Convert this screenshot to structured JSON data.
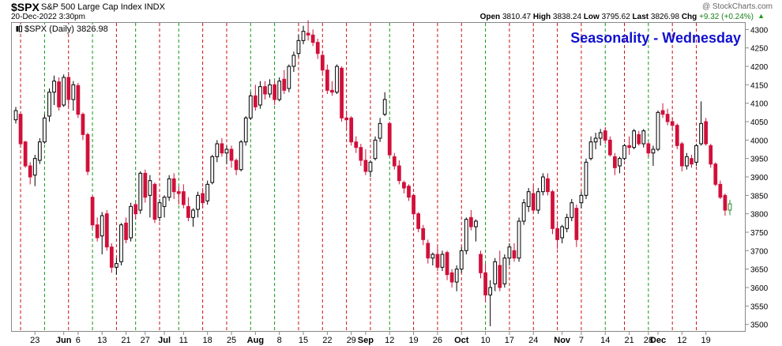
{
  "header": {
    "symbol": "$SPX",
    "name": "S&P 500 Large Cap Index INDX",
    "date": "20-Dec-2022 3:30pm",
    "credit": "@ StockCharts.com",
    "open_label": "Open",
    "open": "3810.47",
    "high_label": "High",
    "high": "3838.24",
    "low_label": "Low",
    "low": "3795.62",
    "last_label": "Last",
    "last": "3826.98",
    "chg_label": "Chg",
    "chg": "+9.32 (+0.24%)",
    "chg_icon": "up-triangle-icon"
  },
  "legend": {
    "label": "$SPX (Daily) 3826.98"
  },
  "annotation": {
    "title": "Seasonality - Wednesday",
    "color": "#1010d0"
  },
  "colors": {
    "up": "#ffffff",
    "down": "#d0103a",
    "wick": "#000000",
    "grid_red": "#cc1111",
    "grid_green": "#119911"
  },
  "chart_data": {
    "type": "candlestick",
    "ylim": [
      3480,
      4320
    ],
    "yticks": [
      3500,
      3550,
      3600,
      3650,
      3700,
      3750,
      3800,
      3850,
      3900,
      3950,
      4000,
      4050,
      4100,
      4150,
      4200,
      4250,
      4300
    ],
    "xtick_labels": [
      {
        "i": 4,
        "text": "23"
      },
      {
        "i": 10,
        "text": "Jun",
        "bold": true
      },
      {
        "i": 13,
        "text": "6"
      },
      {
        "i": 18,
        "text": "13"
      },
      {
        "i": 23,
        "text": "21"
      },
      {
        "i": 27,
        "text": "27"
      },
      {
        "i": 31,
        "text": "Jul",
        "bold": true
      },
      {
        "i": 35,
        "text": "11"
      },
      {
        "i": 40,
        "text": "18"
      },
      {
        "i": 45,
        "text": "25"
      },
      {
        "i": 50,
        "text": "Aug",
        "bold": true
      },
      {
        "i": 55,
        "text": "8"
      },
      {
        "i": 60,
        "text": "15"
      },
      {
        "i": 65,
        "text": "22"
      },
      {
        "i": 70,
        "text": "29"
      },
      {
        "i": 73,
        "text": "Sep",
        "bold": true
      },
      {
        "i": 78,
        "text": "12"
      },
      {
        "i": 83,
        "text": "19"
      },
      {
        "i": 88,
        "text": "26"
      },
      {
        "i": 93,
        "text": "Oct",
        "bold": true
      },
      {
        "i": 98,
        "text": "10"
      },
      {
        "i": 103,
        "text": "17"
      },
      {
        "i": 108,
        "text": "24"
      },
      {
        "i": 114,
        "text": "Nov",
        "bold": true
      },
      {
        "i": 118,
        "text": "7"
      },
      {
        "i": 123,
        "text": "14"
      },
      {
        "i": 128,
        "text": "21"
      },
      {
        "i": 132,
        "text": "28"
      },
      {
        "i": 134,
        "text": "Dec",
        "bold": true
      },
      {
        "i": 139,
        "text": "12"
      },
      {
        "i": 144,
        "text": "19"
      }
    ],
    "wednesday_markers": [
      {
        "i": 1,
        "c": "red"
      },
      {
        "i": 6,
        "c": "green"
      },
      {
        "i": 11,
        "c": "red"
      },
      {
        "i": 16,
        "c": "green"
      },
      {
        "i": 21,
        "c": "red"
      },
      {
        "i": 25,
        "c": "green"
      },
      {
        "i": 30,
        "c": "red"
      },
      {
        "i": 34,
        "c": "green"
      },
      {
        "i": 39,
        "c": "red"
      },
      {
        "i": 44,
        "c": "red"
      },
      {
        "i": 49,
        "c": "green"
      },
      {
        "i": 54,
        "c": "green"
      },
      {
        "i": 59,
        "c": "red"
      },
      {
        "i": 64,
        "c": "red"
      },
      {
        "i": 69,
        "c": "red"
      },
      {
        "i": 74,
        "c": "red"
      },
      {
        "i": 78,
        "c": "green"
      },
      {
        "i": 83,
        "c": "red"
      },
      {
        "i": 88,
        "c": "red"
      },
      {
        "i": 93,
        "c": "red"
      },
      {
        "i": 98,
        "c": "green"
      },
      {
        "i": 103,
        "c": "red"
      },
      {
        "i": 108,
        "c": "red"
      },
      {
        "i": 113,
        "c": "red"
      },
      {
        "i": 118,
        "c": "red"
      },
      {
        "i": 123,
        "c": "green"
      },
      {
        "i": 127,
        "c": "red"
      },
      {
        "i": 132,
        "c": "green"
      },
      {
        "i": 137,
        "c": "red"
      },
      {
        "i": 142,
        "c": "red"
      }
    ],
    "candles": [
      [
        4055,
        4090,
        4045,
        4080
      ],
      [
        4070,
        4076,
        3980,
        3990
      ],
      [
        3995,
        3998,
        3925,
        3930
      ],
      [
        3930,
        3940,
        3880,
        3900
      ],
      [
        3905,
        3960,
        3875,
        3950
      ],
      [
        3945,
        4005,
        3935,
        3995
      ],
      [
        3995,
        4070,
        3990,
        4060
      ],
      [
        4065,
        4140,
        4050,
        4130
      ],
      [
        4130,
        4175,
        4095,
        4160
      ],
      [
        4158,
        4170,
        4080,
        4090
      ],
      [
        4095,
        4178,
        4090,
        4170
      ],
      [
        4170,
        4185,
        4090,
        4110
      ],
      [
        4110,
        4160,
        4080,
        4150
      ],
      [
        4148,
        4155,
        4060,
        4070
      ],
      [
        4070,
        4075,
        4000,
        4015
      ],
      [
        4015,
        4020,
        3905,
        3915
      ],
      [
        3845,
        3850,
        3760,
        3770
      ],
      [
        3770,
        3790,
        3725,
        3735
      ],
      [
        3740,
        3805,
        3690,
        3795
      ],
      [
        3800,
        3810,
        3700,
        3710
      ],
      [
        3710,
        3720,
        3640,
        3655
      ],
      [
        3655,
        3680,
        3635,
        3665
      ],
      [
        3670,
        3775,
        3660,
        3770
      ],
      [
        3775,
        3790,
        3720,
        3730
      ],
      [
        3735,
        3830,
        3725,
        3820
      ],
      [
        3825,
        3830,
        3785,
        3800
      ],
      [
        3810,
        3915,
        3800,
        3910
      ],
      [
        3910,
        3920,
        3830,
        3845
      ],
      [
        3850,
        3905,
        3790,
        3890
      ],
      [
        3880,
        3885,
        3775,
        3785
      ],
      [
        3790,
        3840,
        3780,
        3830
      ],
      [
        3820,
        3850,
        3790,
        3845
      ],
      [
        3845,
        3905,
        3835,
        3895
      ],
      [
        3895,
        3910,
        3840,
        3860
      ],
      [
        3860,
        3875,
        3825,
        3855
      ],
      [
        3860,
        3880,
        3815,
        3825
      ],
      [
        3820,
        3845,
        3780,
        3790
      ],
      [
        3790,
        3815,
        3765,
        3810
      ],
      [
        3812,
        3860,
        3790,
        3850
      ],
      [
        3855,
        3870,
        3815,
        3830
      ],
      [
        3835,
        3890,
        3825,
        3880
      ],
      [
        3885,
        3960,
        3880,
        3955
      ],
      [
        3955,
        4000,
        3940,
        3990
      ],
      [
        3990,
        4005,
        3955,
        3965
      ],
      [
        3965,
        3985,
        3935,
        3975
      ],
      [
        3975,
        3985,
        3925,
        3945
      ],
      [
        3945,
        3950,
        3905,
        3920
      ],
      [
        3920,
        4000,
        3915,
        3995
      ],
      [
        3995,
        4065,
        3985,
        4060
      ],
      [
        4060,
        4130,
        4055,
        4120
      ],
      [
        4120,
        4150,
        4080,
        4090
      ],
      [
        4095,
        4160,
        4085,
        4145
      ],
      [
        4145,
        4160,
        4110,
        4125
      ],
      [
        4125,
        4165,
        4115,
        4150
      ],
      [
        4150,
        4160,
        4095,
        4110
      ],
      [
        4110,
        4170,
        4105,
        4160
      ],
      [
        4165,
        4190,
        4125,
        4135
      ],
      [
        4140,
        4205,
        4130,
        4200
      ],
      [
        4200,
        4240,
        4185,
        4230
      ],
      [
        4235,
        4285,
        4225,
        4270
      ],
      [
        4270,
        4310,
        4260,
        4295
      ],
      [
        4290,
        4325,
        4270,
        4285
      ],
      [
        4285,
        4300,
        4255,
        4265
      ],
      [
        4265,
        4275,
        4220,
        4235
      ],
      [
        4230,
        4240,
        4180,
        4190
      ],
      [
        4190,
        4205,
        4125,
        4135
      ],
      [
        4135,
        4160,
        4120,
        4130
      ],
      [
        4130,
        4205,
        4125,
        4200
      ],
      [
        4195,
        4200,
        4050,
        4060
      ],
      [
        4060,
        4080,
        4030,
        4055
      ],
      [
        4060,
        4065,
        3985,
        3995
      ],
      [
        3995,
        4010,
        3965,
        3980
      ],
      [
        3980,
        3990,
        3930,
        3945
      ],
      [
        3945,
        3975,
        3905,
        3915
      ],
      [
        3915,
        3945,
        3900,
        3940
      ],
      [
        3950,
        4010,
        3945,
        4000
      ],
      [
        4005,
        4060,
        3995,
        4045
      ],
      [
        4070,
        4130,
        4065,
        4110
      ],
      [
        4045,
        4050,
        3955,
        3960
      ],
      [
        3955,
        3965,
        3920,
        3930
      ],
      [
        3930,
        3945,
        3880,
        3890
      ],
      [
        3885,
        3890,
        3855,
        3870
      ],
      [
        3875,
        3880,
        3835,
        3845
      ],
      [
        3850,
        3855,
        3790,
        3800
      ],
      [
        3800,
        3805,
        3750,
        3760
      ],
      [
        3760,
        3770,
        3715,
        3730
      ],
      [
        3720,
        3730,
        3665,
        3680
      ],
      [
        3680,
        3695,
        3660,
        3690
      ],
      [
        3690,
        3710,
        3645,
        3655
      ],
      [
        3655,
        3700,
        3645,
        3690
      ],
      [
        3695,
        3700,
        3620,
        3635
      ],
      [
        3640,
        3650,
        3600,
        3615
      ],
      [
        3615,
        3660,
        3590,
        3650
      ],
      [
        3650,
        3710,
        3640,
        3700
      ],
      [
        3700,
        3790,
        3690,
        3785
      ],
      [
        3790,
        3810,
        3755,
        3765
      ],
      [
        3765,
        3785,
        3725,
        3780
      ],
      [
        3690,
        3700,
        3625,
        3640
      ],
      [
        3640,
        3665,
        3560,
        3580
      ],
      [
        3580,
        3620,
        3495,
        3600
      ],
      [
        3610,
        3680,
        3590,
        3670
      ],
      [
        3660,
        3700,
        3590,
        3600
      ],
      [
        3610,
        3690,
        3600,
        3680
      ],
      [
        3680,
        3720,
        3660,
        3710
      ],
      [
        3700,
        3720,
        3670,
        3680
      ],
      [
        3680,
        3790,
        3670,
        3780
      ],
      [
        3780,
        3840,
        3770,
        3830
      ],
      [
        3820,
        3870,
        3805,
        3860
      ],
      [
        3855,
        3875,
        3800,
        3810
      ],
      [
        3810,
        3870,
        3800,
        3860
      ],
      [
        3860,
        3910,
        3850,
        3900
      ],
      [
        3895,
        3910,
        3850,
        3860
      ],
      [
        3860,
        3865,
        3745,
        3760
      ],
      [
        3760,
        3780,
        3705,
        3730
      ],
      [
        3735,
        3770,
        3720,
        3765
      ],
      [
        3760,
        3800,
        3750,
        3790
      ],
      [
        3790,
        3840,
        3780,
        3830
      ],
      [
        3815,
        3825,
        3710,
        3730
      ],
      [
        3830,
        3860,
        3815,
        3850
      ],
      [
        3850,
        3950,
        3840,
        3940
      ],
      [
        3950,
        4010,
        3945,
        3995
      ],
      [
        3995,
        4020,
        3975,
        4005
      ],
      [
        4005,
        4030,
        3985,
        4020
      ],
      [
        4025,
        4035,
        3990,
        4000
      ],
      [
        4000,
        4010,
        3955,
        3960
      ],
      [
        3955,
        3965,
        3905,
        3925
      ],
      [
        3930,
        3955,
        3910,
        3950
      ],
      [
        3950,
        3990,
        3945,
        3985
      ],
      [
        3985,
        4010,
        3960,
        3980
      ],
      [
        3980,
        4030,
        3975,
        4025
      ],
      [
        4015,
        4025,
        3985,
        3990
      ],
      [
        3990,
        4030,
        3980,
        4025
      ],
      [
        3990,
        3995,
        3955,
        3965
      ],
      [
        3965,
        3985,
        3930,
        3975
      ],
      [
        3975,
        4080,
        3970,
        4075
      ],
      [
        4080,
        4100,
        4060,
        4070
      ],
      [
        4070,
        4085,
        4040,
        4050
      ],
      [
        4050,
        4060,
        4030,
        4040
      ],
      [
        4040,
        4045,
        3975,
        3985
      ],
      [
        3990,
        3995,
        3915,
        3930
      ],
      [
        3930,
        3965,
        3920,
        3955
      ],
      [
        3950,
        3960,
        3925,
        3935
      ],
      [
        3940,
        3990,
        3930,
        3985
      ],
      [
        3990,
        4105,
        3985,
        4045
      ],
      [
        4050,
        4060,
        3985,
        3990
      ],
      [
        3985,
        3990,
        3925,
        3935
      ],
      [
        3935,
        3940,
        3875,
        3880
      ],
      [
        3880,
        3890,
        3840,
        3845
      ],
      [
        3850,
        3855,
        3795,
        3810
      ],
      [
        3810,
        3838,
        3796,
        3827
      ]
    ]
  }
}
